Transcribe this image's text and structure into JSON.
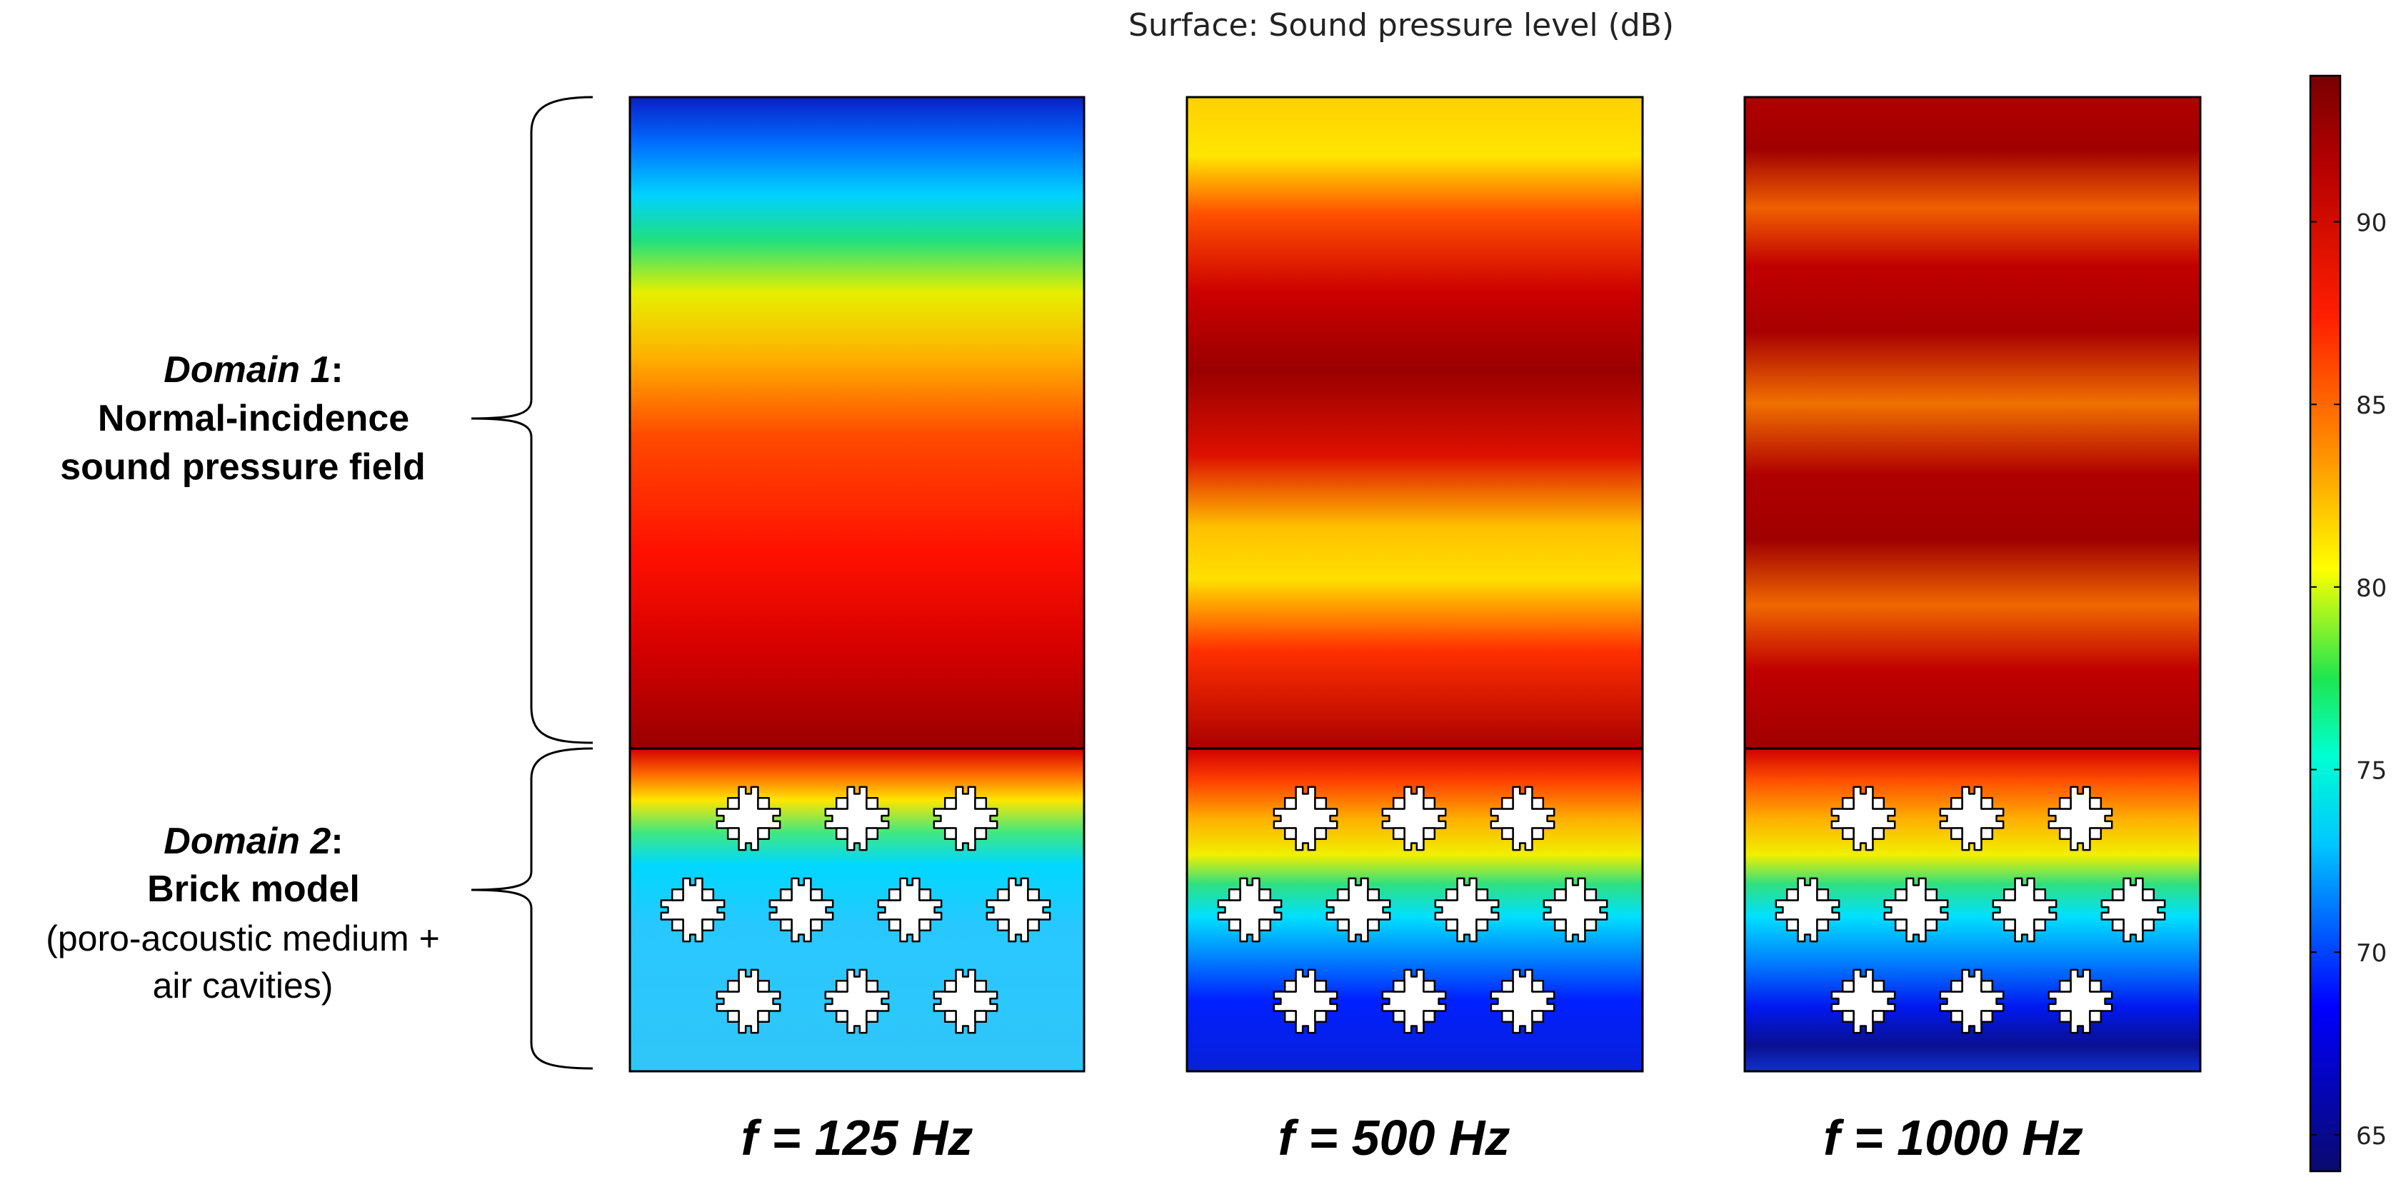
{
  "title": "Surface: Sound pressure level (dB)",
  "domain1": {
    "label_italic": "Domain 1",
    "label_colon": ":",
    "line2": "Normal-incidence",
    "line3": "sound pressure field"
  },
  "domain2": {
    "label_italic": "Domain 2",
    "label_colon": ":",
    "line2": "Brick model",
    "line3": "(poro-acoustic medium +",
    "line4": "air cavities)"
  },
  "panels": [
    {
      "frequency_label": "f = 125 Hz"
    },
    {
      "frequency_label": "f = 500 Hz"
    },
    {
      "frequency_label": "f = 1000 Hz"
    }
  ],
  "colorbar": {
    "ticks": [
      "90",
      "85",
      "80",
      "75",
      "70",
      "65"
    ],
    "tick_values": [
      90,
      85,
      80,
      75,
      70,
      65
    ],
    "range": [
      64,
      94
    ],
    "colormap": [
      "#0a0a6e",
      "#0000ff",
      "#00c8ff",
      "#00ffd2",
      "#1ee650",
      "#ffff00",
      "#ff9600",
      "#ff1e00",
      "#b40000",
      "#780000"
    ]
  },
  "colors": {
    "outline": "#000000",
    "cavity_fill": "#ffffff",
    "interface_line": "#000000"
  }
}
